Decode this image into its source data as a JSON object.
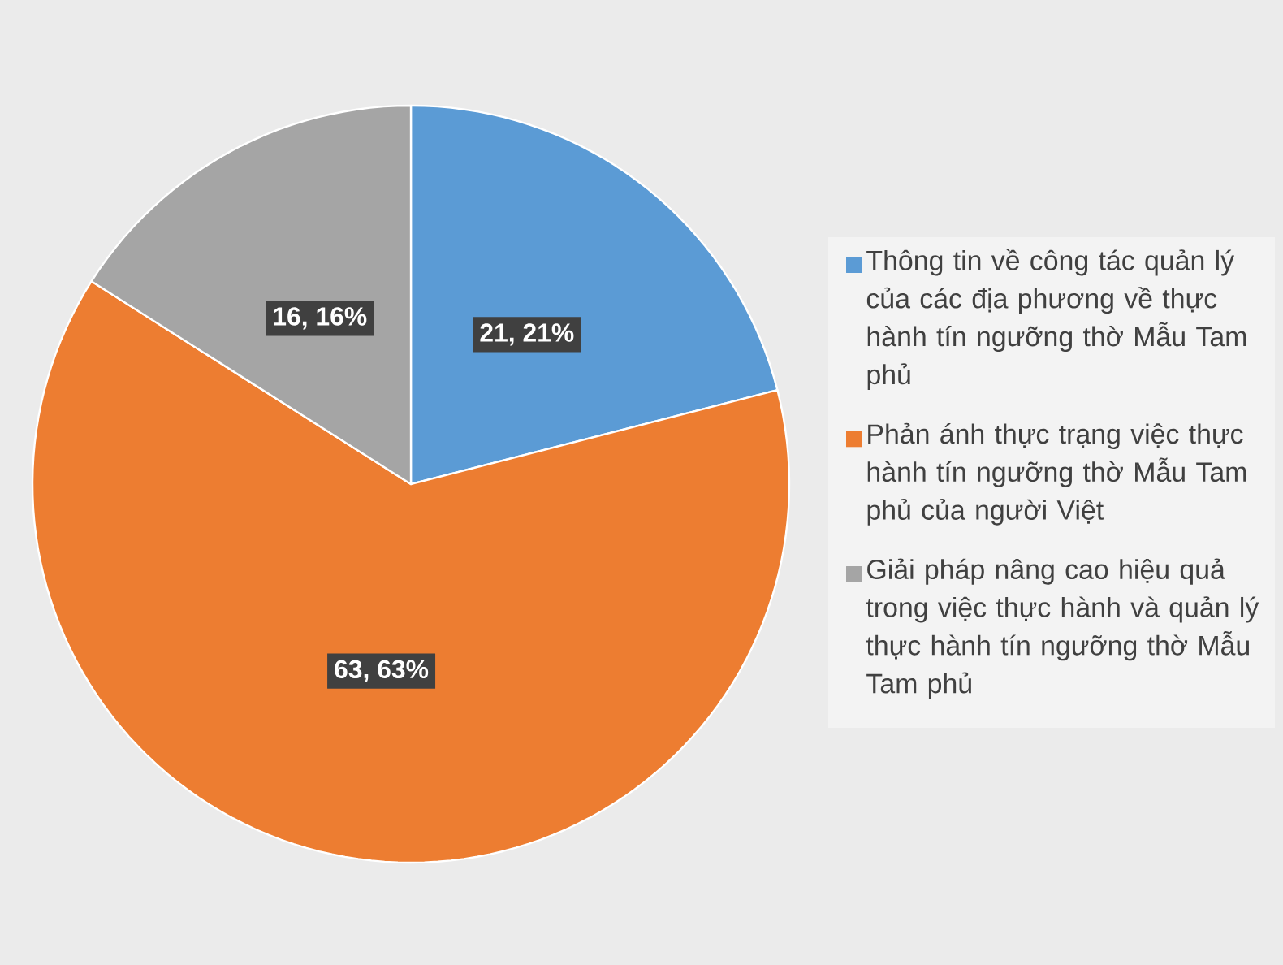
{
  "chart_data": {
    "type": "pie",
    "categories": [
      "Thông tin về công tác quản lý của các địa phương về thực hành tín ngưỡng thờ Mẫu Tam phủ",
      "Phản ánh thực trạng việc thực hành tín ngưỡng thờ Mẫu Tam phủ  của người Việt",
      "Giải pháp nâng cao hiệu quả trong việc thực hành và quản lý thực hành tín ngưỡng thờ Mẫu Tam phủ"
    ],
    "values": [
      21,
      63,
      16
    ],
    "colors": [
      "#5b9bd5",
      "#ed7d31",
      "#a5a5a5"
    ],
    "value_labels": [
      "21, 21%",
      "63, 63%",
      "16, 16%"
    ],
    "legend": "right"
  }
}
